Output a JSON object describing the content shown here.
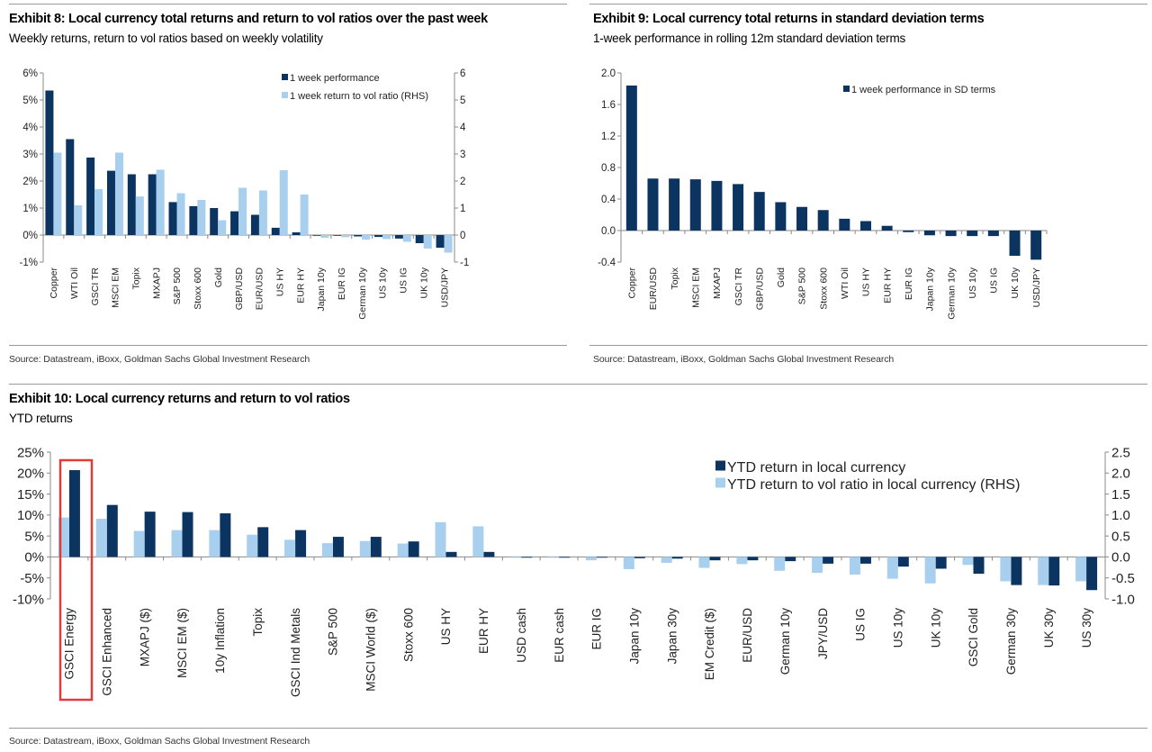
{
  "colors": {
    "dark": "#0b3461",
    "light": "#a9cfee",
    "highlight": "#e03c3c"
  },
  "exhibit8": {
    "title": "Exhibit 8: Local currency total returns and return to vol ratios over the past week",
    "subtitle": "Weekly returns, return to vol ratios based on weekly volatility",
    "source": "Source: Datastream, iBoxx, Goldman Sachs Global Investment Research"
  },
  "exhibit9": {
    "title": "Exhibit 9: Local currency total returns in standard deviation terms",
    "subtitle": "1-week performance in rolling 12m standard deviation terms",
    "source": "Source: Datastream, iBoxx, Goldman Sachs Global Investment Research"
  },
  "exhibit10": {
    "title": "Exhibit 10: Local currency returns and return to vol ratios",
    "subtitle": "YTD returns",
    "source": "Source: Datastream, iBoxx, Goldman Sachs Global Investment Research",
    "highlighted_category": "GSCI Energy"
  },
  "chart_data": [
    {
      "type": "bar",
      "categories": [
        "Copper",
        "WTI Oil",
        "GSCI TR",
        "MSCI EM",
        "Topix",
        "MXAPJ",
        "S&P 500",
        "Stoxx 600",
        "Gold",
        "GBP/USD",
        "EUR/USD",
        "US HY",
        "EUR HY",
        "Japan 10y",
        "EUR IG",
        "German 10y",
        "US 10y",
        "US IG",
        "UK 10y",
        "USD/JPY"
      ],
      "series": [
        {
          "name": "1 week performance",
          "axis": "left",
          "values": [
            5.35,
            3.55,
            2.87,
            2.38,
            2.25,
            2.25,
            1.22,
            1.07,
            1.0,
            0.88,
            0.75,
            0.27,
            0.1,
            0.0,
            0.0,
            -0.05,
            -0.07,
            -0.13,
            -0.3,
            -0.47
          ]
        },
        {
          "name": "1 week return to vol ratio (RHS)",
          "axis": "right",
          "values": [
            3.05,
            1.1,
            1.7,
            3.05,
            1.43,
            2.42,
            1.55,
            1.3,
            0.55,
            1.75,
            1.65,
            2.4,
            1.5,
            -0.1,
            -0.08,
            -0.17,
            -0.15,
            -0.25,
            -0.5,
            -0.65
          ]
        }
      ],
      "ylim": [
        -1,
        6
      ],
      "yticks": [
        "6%",
        "5%",
        "4%",
        "3%",
        "2%",
        "1%",
        "0%",
        "-1%"
      ],
      "ylim_right": [
        -1,
        6
      ],
      "yticks_right": [
        "6",
        "5",
        "4",
        "3",
        "2",
        "1",
        "0",
        "-1"
      ],
      "legend": "top-right",
      "grid": false
    },
    {
      "type": "bar",
      "categories": [
        "Copper",
        "EUR/USD",
        "Topix",
        "MSCI EM",
        "MXAPJ",
        "GSCI TR",
        "GBP/USD",
        "Gold",
        "S&P 500",
        "Stoxx 600",
        "WTI Oil",
        "US HY",
        "EUR HY",
        "EUR IG",
        "Japan 10y",
        "German 10y",
        "US 10y",
        "US IG",
        "UK 10y",
        "USD/JPY"
      ],
      "series": [
        {
          "name": "1 week performance in SD terms",
          "axis": "left",
          "values": [
            1.84,
            0.66,
            0.66,
            0.65,
            0.63,
            0.59,
            0.49,
            0.36,
            0.3,
            0.26,
            0.15,
            0.12,
            0.06,
            -0.02,
            -0.06,
            -0.07,
            -0.07,
            -0.07,
            -0.32,
            -0.37
          ]
        }
      ],
      "ylim": [
        -0.4,
        2.0
      ],
      "yticks": [
        "2.0",
        "1.6",
        "1.2",
        "0.8",
        "0.4",
        "0.0",
        "-0.4"
      ],
      "legend": "top-right",
      "grid": false
    },
    {
      "type": "bar",
      "categories": [
        "GSCI Energy",
        "GSCI Enhanced",
        "MXAPJ ($)",
        "MSCI EM ($)",
        "10y Inflation",
        "Topix",
        "GSCI Ind Metals",
        "S&P 500",
        "MSCI World ($)",
        "Stoxx 600",
        "US HY",
        "EUR HY",
        "USD cash",
        "EUR cash",
        "EUR IG",
        "Japan 10y",
        "Japan 30y",
        "EM Credit ($)",
        "EUR/USD",
        "German 10y",
        "JPY/USD",
        "US IG",
        "US 10y",
        "UK 10y",
        "GSCI Gold",
        "German 30y",
        "UK 30y",
        "US 30y"
      ],
      "series": [
        {
          "name": "YTD return in local currency",
          "axis": "left",
          "values": [
            20.7,
            12.4,
            10.8,
            10.7,
            10.4,
            7.1,
            6.4,
            4.8,
            4.8,
            3.7,
            1.2,
            1.2,
            0.0,
            -0.1,
            -0.1,
            -0.3,
            -0.4,
            -0.8,
            -0.8,
            -1.0,
            -1.6,
            -1.6,
            -2.3,
            -2.8,
            -4.0,
            -6.7,
            -6.8,
            -7.9
          ]
        },
        {
          "name": "YTD return to vol ratio in local currency (RHS)",
          "axis": "right",
          "values": [
            0.94,
            0.91,
            0.62,
            0.64,
            0.64,
            0.53,
            0.41,
            0.33,
            0.38,
            0.32,
            0.83,
            0.73,
            0.0,
            0.0,
            -0.08,
            -0.29,
            -0.14,
            -0.26,
            -0.17,
            -0.33,
            -0.38,
            -0.42,
            -0.52,
            -0.63,
            -0.19,
            -0.58,
            -0.67,
            -0.58
          ]
        }
      ],
      "ylim": [
        -10,
        25
      ],
      "yticks": [
        "25%",
        "20%",
        "15%",
        "10%",
        "5%",
        "0%",
        "-5%",
        "-10%"
      ],
      "ylim_right": [
        -1.0,
        2.5
      ],
      "yticks_right": [
        "2.5",
        "2.0",
        "1.5",
        "1.0",
        "0.5",
        "0.0",
        "-0.5",
        "-1.0"
      ],
      "legend": "top-right",
      "grid": false
    }
  ]
}
